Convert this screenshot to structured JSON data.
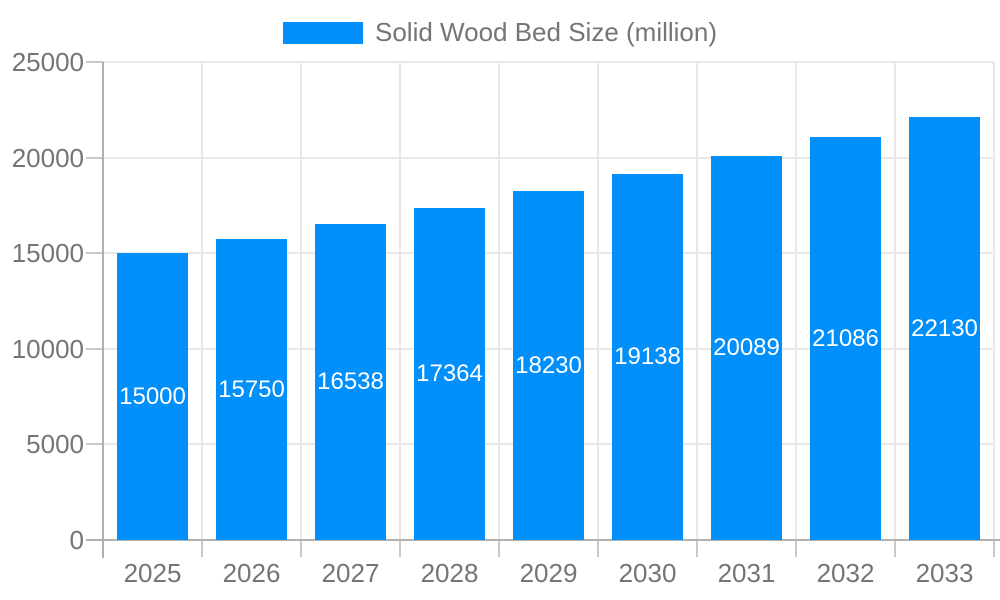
{
  "legend": {
    "label": "Solid Wood Bed Size (million)"
  },
  "colors": {
    "bar": "#008FFB",
    "axis_text": "#757575",
    "bar_label_text": "#ffffff",
    "grid_line": "#e8e8e8",
    "axis_line": "#b0b0b0",
    "tick_line": "#c9c9c9"
  },
  "chart_data": {
    "type": "bar",
    "title": "",
    "series_name": "Solid Wood Bed Size (million)",
    "categories": [
      "2025",
      "2026",
      "2027",
      "2028",
      "2029",
      "2030",
      "2031",
      "2032",
      "2033"
    ],
    "values": [
      15000,
      15750,
      16538,
      17364,
      18230,
      19138,
      20089,
      21086,
      22130
    ],
    "xlabel": "",
    "ylabel": "",
    "ylim": [
      0,
      25000
    ],
    "yticks": [
      0,
      5000,
      10000,
      15000,
      20000,
      25000
    ],
    "grid": "both",
    "legend_position": "top",
    "data_labels": "inside-center"
  }
}
